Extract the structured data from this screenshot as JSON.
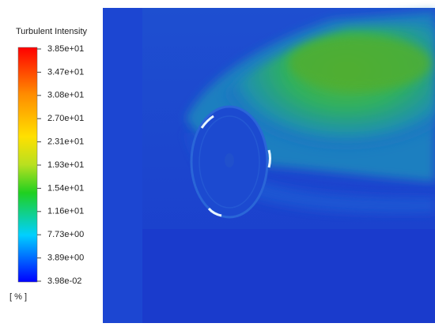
{
  "legend": {
    "title": "Turbulent Intensity",
    "ticks": [
      "3.85e+01",
      "3.47e+01",
      "3.08e+01",
      "2.70e+01",
      "2.31e+01",
      "1.93e+01",
      "1.54e+01",
      "1.16e+01",
      "7.73e+00",
      "3.89e+00",
      "3.98e-02"
    ],
    "unit": "[ % ]"
  }
}
